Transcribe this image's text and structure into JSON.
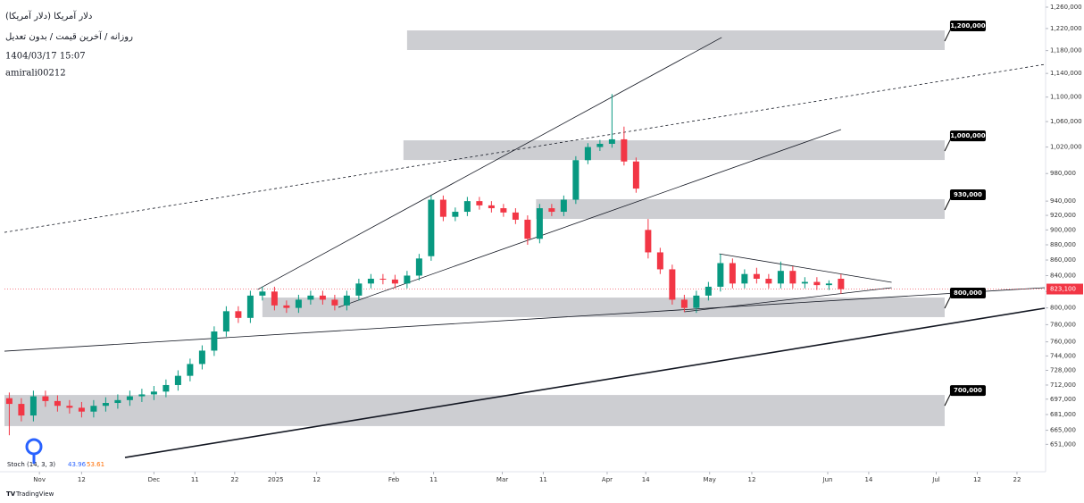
{
  "chart_data": {
    "type": "candlestick",
    "title": "دلار آمریکا (دلار آمریکا)",
    "subtitle": "روزانه / آخرین قیمت / بدون تعدیل",
    "date_text": "1404/03/17 15:07",
    "author": "amirali00212",
    "indicator": {
      "name": "Stoch (14, 3, 3)",
      "values": [
        43.96,
        53.61
      ],
      "colors": [
        "#2962ff",
        "#ff6d00"
      ]
    },
    "logo": "TradingView",
    "log_scale": true,
    "up_color": "#089981",
    "down_color": "#f23645",
    "open": [
      698000,
      692000,
      680000,
      700000,
      695000,
      690000,
      688000,
      684000,
      690000,
      693000,
      696000,
      700000,
      702000,
      705000,
      712000,
      722000,
      735000,
      750000,
      772000,
      796000,
      788000,
      815000,
      820000,
      803000,
      800000,
      810000,
      815000,
      810000,
      803000,
      815000,
      830000,
      836000,
      835000,
      830000,
      840000,
      865000,
      942000,
      918000,
      925000,
      940000,
      934000,
      930000,
      924000,
      914000,
      888000,
      930000,
      925000,
      942000,
      1000000,
      1020000,
      1025000,
      1032000,
      998000,
      900000,
      870000,
      848000,
      810000,
      800000,
      815000,
      826000,
      856000,
      830000,
      842000,
      836000,
      830000,
      846000,
      830000,
      832000,
      828000,
      836000
    ],
    "high": [
      704000,
      698000,
      706000,
      706000,
      701000,
      696000,
      694000,
      696000,
      699000,
      702000,
      706000,
      708000,
      711000,
      718000,
      728000,
      741000,
      756000,
      778000,
      802000,
      802000,
      821000,
      826000,
      826000,
      809000,
      816000,
      821000,
      821000,
      816000,
      821000,
      836000,
      842000,
      842000,
      841000,
      846000,
      868000,
      948000,
      948000,
      931000,
      946000,
      946000,
      940000,
      936000,
      930000,
      920000,
      936000,
      936000,
      948000,
      1006000,
      1026000,
      1031000,
      1105000,
      1052000,
      1004000,
      915000,
      876000,
      854000,
      816000,
      821000,
      832000,
      868000,
      862000,
      848000,
      850000,
      842000,
      858000,
      852000,
      838000,
      838000,
      834000,
      842000
    ],
    "low": [
      660000,
      674000,
      674000,
      689000,
      684000,
      682000,
      678000,
      678000,
      684000,
      687000,
      690000,
      694000,
      696000,
      699000,
      706000,
      716000,
      729000,
      744000,
      766000,
      782000,
      782000,
      809000,
      797000,
      794000,
      794000,
      804000,
      804000,
      797000,
      797000,
      809000,
      824000,
      829000,
      824000,
      824000,
      834000,
      859000,
      912000,
      912000,
      919000,
      928000,
      924000,
      918000,
      908000,
      880000,
      882000,
      919000,
      919000,
      936000,
      994000,
      1014000,
      1019000,
      992000,
      952000,
      862000,
      842000,
      804000,
      795000,
      794000,
      809000,
      820000,
      824000,
      824000,
      830000,
      824000,
      824000,
      824000,
      824000,
      822000,
      822000,
      817000
    ],
    "close": [
      692000,
      680000,
      700000,
      695000,
      690000,
      688000,
      684000,
      690000,
      693000,
      696000,
      700000,
      702000,
      705000,
      712000,
      722000,
      735000,
      750000,
      772000,
      796000,
      788000,
      815000,
      820000,
      803000,
      800000,
      810000,
      815000,
      810000,
      803000,
      815000,
      830000,
      836000,
      835000,
      830000,
      840000,
      862000,
      942000,
      918000,
      925000,
      940000,
      934000,
      930000,
      924000,
      914000,
      888000,
      930000,
      925000,
      942000,
      1000000,
      1020000,
      1025000,
      1032000,
      998000,
      958000,
      870000,
      848000,
      810000,
      800000,
      815000,
      826000,
      856000,
      830000,
      842000,
      836000,
      830000,
      846000,
      830000,
      832000,
      828000,
      830000,
      823000
    ],
    "last_price": {
      "value": 823100,
      "label": "823,100"
    },
    "ylim": [
      631400,
      1273700
    ],
    "yticks": [
      {
        "value": 1260000,
        "label": "1,260,000"
      },
      {
        "value": 1220000,
        "label": "1,220,000"
      },
      {
        "value": 1180000,
        "label": "1,180,000"
      },
      {
        "value": 1140000,
        "label": "1,140,000"
      },
      {
        "value": 1100000,
        "label": "1,100,000"
      },
      {
        "value": 1060000,
        "label": "1,060,000"
      },
      {
        "value": 1020000,
        "label": "1,020,000"
      },
      {
        "value": 980000,
        "label": "980,000"
      },
      {
        "value": 940000,
        "label": "940,000"
      },
      {
        "value": 920000,
        "label": "920,000"
      },
      {
        "value": 900000,
        "label": "900,000"
      },
      {
        "value": 880000,
        "label": "880,000"
      },
      {
        "value": 860000,
        "label": "860,000"
      },
      {
        "value": 840000,
        "label": "840,000"
      },
      {
        "value": 820000,
        "label": "820,000"
      },
      {
        "value": 800000,
        "label": "800,000"
      },
      {
        "value": 780000,
        "label": "780,000"
      },
      {
        "value": 760000,
        "label": "760,000"
      },
      {
        "value": 744000,
        "label": "744,000"
      },
      {
        "value": 728000,
        "label": "728,000"
      },
      {
        "value": 712000,
        "label": "712,000"
      },
      {
        "value": 697000,
        "label": "697,000"
      },
      {
        "value": 681000,
        "label": "681,000"
      },
      {
        "value": 665000,
        "label": "665,000"
      },
      {
        "value": 651000,
        "label": "651,000"
      }
    ],
    "xlim": [
      -0.4,
      85.9
    ],
    "xticks": [
      {
        "value": 2.5,
        "label": "Nov"
      },
      {
        "value": 6.0,
        "label": "12"
      },
      {
        "value": 12.0,
        "label": "Dec"
      },
      {
        "value": 15.4,
        "label": "11"
      },
      {
        "value": 18.7,
        "label": "22"
      },
      {
        "value": 22.1,
        "label": "2025"
      },
      {
        "value": 25.5,
        "label": "12"
      },
      {
        "value": 31.9,
        "label": "Feb"
      },
      {
        "value": 35.2,
        "label": "11"
      },
      {
        "value": 40.9,
        "label": "Mar"
      },
      {
        "value": 44.3,
        "label": "11"
      },
      {
        "value": 49.6,
        "label": "Apr"
      },
      {
        "value": 52.8,
        "label": "14"
      },
      {
        "value": 58.1,
        "label": "May"
      },
      {
        "value": 61.6,
        "label": "12"
      },
      {
        "value": 67.9,
        "label": "Jun"
      },
      {
        "value": 71.3,
        "label": "14"
      },
      {
        "value": 76.9,
        "label": "Jul"
      },
      {
        "value": 80.3,
        "label": "12"
      },
      {
        "value": 83.6,
        "label": "22"
      }
    ],
    "zones": [
      {
        "level": {
          "value": 1200000,
          "label": "1,200,000"
        },
        "top": 1216500,
        "bottom": 1181000,
        "x0": 33.0,
        "x1": 77.6
      },
      {
        "level": {
          "value": 1000000,
          "label": "1,000,000"
        },
        "top": 1030400,
        "bottom": 1000300,
        "x0": 32.7,
        "x1": 77.6
      },
      {
        "level": {
          "value": 930000,
          "label": "930,000"
        },
        "top": 942700,
        "bottom": 915100,
        "x0": 43.7,
        "x1": 77.6
      },
      {
        "level": {
          "value": 800000,
          "label": "800,000"
        },
        "top": 812600,
        "bottom": 788900,
        "x0": 21.0,
        "x1": 77.6
      },
      {
        "level": {
          "value": 700000,
          "label": "700,000"
        },
        "top": 701400,
        "bottom": 669200,
        "x0": -0.4,
        "x1": 77.6
      }
    ],
    "zone_color": "#c4c5ca",
    "trendlines": [
      {
        "x": [
          20.6,
          59.1
        ],
        "y": [
          822500,
          1203600
        ],
        "style": "solid"
      },
      {
        "x": [
          27.3,
          69.0
        ],
        "y": [
          800700,
          1047300
        ],
        "style": "solid"
      },
      {
        "x": [
          -0.4,
          85.9
        ],
        "y": [
          896700,
          1155700
        ],
        "style": "dashed"
      },
      {
        "x": [
          -0.4,
          85.9
        ],
        "y": [
          749400,
          824800
        ],
        "style": "solid"
      },
      {
        "x": [
          9.6,
          85.9
        ],
        "y": [
          638200,
          799600
        ],
        "style": "bold"
      },
      {
        "x": [
          58.9,
          73.2
        ],
        "y": [
          868100,
          831500
        ],
        "style": "solid"
      },
      {
        "x": [
          56.0,
          73.2
        ],
        "y": [
          795300,
          824800
        ],
        "style": "solid"
      }
    ]
  }
}
